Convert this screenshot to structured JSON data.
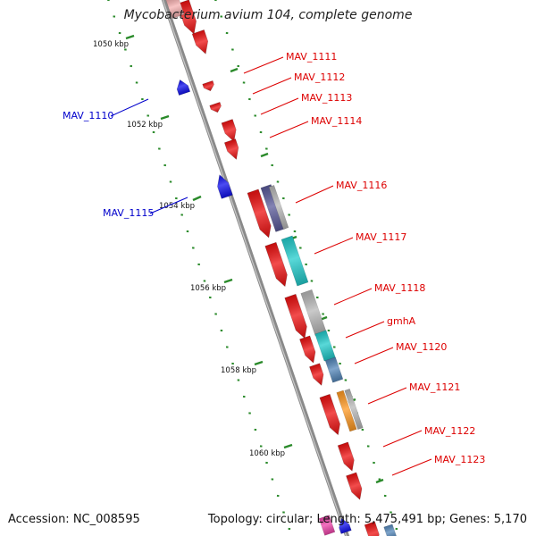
{
  "title": "Mycobacterium avium 104, complete genome",
  "footer": {
    "accession": "Accession: NC_008595",
    "topology": "Topology: circular; Length: 5,475,491 bp; Genes: 5,170"
  },
  "colors": {
    "backbone": "#8a8a8a",
    "forward_gene": "#ee1111",
    "reverse_gene": "#1010ee",
    "forward_label": "#dd0000",
    "reverse_label": "#0000cc",
    "tick": "#2a8a2a",
    "cog_cyan": "#22cccc",
    "cog_grey": "#b8b8b8",
    "cog_steel": "#5588bb",
    "cog_orange": "#ff9922",
    "cog_slate": "#5a5a9a",
    "cog_pink": "#ee44aa"
  },
  "scale_labels": [
    {
      "text": "1050 kbp"
    },
    {
      "text": "1052 kbp"
    },
    {
      "text": "1054 kbp"
    },
    {
      "text": "1056 kbp"
    },
    {
      "text": "1058 kbp"
    },
    {
      "text": "1060 kbp"
    }
  ],
  "forward_gene_labels": [
    "MAV_1111",
    "MAV_1112",
    "MAV_1113",
    "MAV_1114",
    "MAV_1116",
    "MAV_1117",
    "MAV_1118",
    "gmhA",
    "MAV_1120",
    "MAV_1121",
    "MAV_1122",
    "MAV_1123"
  ],
  "reverse_gene_labels": [
    "MAV_1110",
    "MAV_1115"
  ]
}
